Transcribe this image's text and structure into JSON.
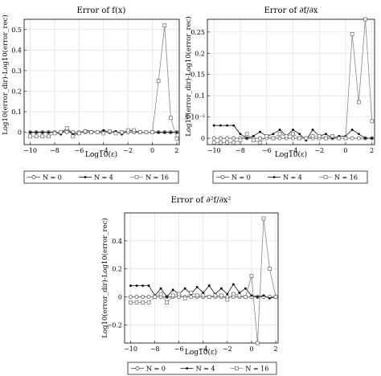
{
  "chart_data": [
    {
      "type": "line",
      "title": "Error of f(x)",
      "xlabel": "Log10(ε)",
      "ylabel": "Log10(error_dir)-Log10(error_rec)",
      "xlim": [
        -10.5,
        2.2
      ],
      "ylim": [
        -0.06,
        0.55
      ],
      "xticks": [
        "−10",
        "−8",
        "−6",
        "−4",
        "−2",
        "0",
        "2"
      ],
      "yticks": [
        "0",
        "0.1",
        "0.2",
        "0.3",
        "0.4",
        "0.5"
      ],
      "grid": true,
      "legend_placement": "bottom",
      "x": [
        -10,
        -9.5,
        -9,
        -8.5,
        -8,
        -7.5,
        -7,
        -6.5,
        -6,
        -5.5,
        -5,
        -4.5,
        -4,
        -3.5,
        -3,
        -2.5,
        -2,
        -1.5,
        -1,
        -0.5,
        0,
        0.5,
        1,
        1.5,
        2
      ],
      "series": [
        {
          "name": "N = 0",
          "marker": "circle",
          "values": [
            0,
            0,
            0,
            0,
            0,
            0,
            0,
            0,
            0,
            0,
            0,
            0,
            0,
            0,
            0,
            0,
            0,
            0,
            0,
            0,
            0,
            0,
            0,
            0,
            0
          ]
        },
        {
          "name": "N = 4",
          "marker": "dot",
          "values": [
            0,
            0,
            0,
            0,
            0,
            -0.01,
            0.02,
            -0.01,
            -0.005,
            0.01,
            0.005,
            0,
            0.01,
            0,
            0.005,
            -0.01,
            0.01,
            0.005,
            0,
            0,
            0,
            0,
            0,
            0,
            0
          ]
        },
        {
          "name": "N = 16",
          "marker": "square",
          "values": [
            -0.02,
            -0.02,
            -0.02,
            -0.02,
            -0.005,
            0,
            0.02,
            -0.02,
            -0.005,
            0.005,
            0,
            0,
            -0.005,
            0.005,
            -0.005,
            0,
            0.01,
            0.01,
            0,
            0,
            0,
            0.25,
            0.52,
            0.07,
            -0.03
          ]
        }
      ]
    },
    {
      "type": "line",
      "title": "Error of ∂f/∂x",
      "xlabel": "Log10(ε)",
      "ylabel": "Log10(error_dir)-Log10(error_rec)",
      "xlim": [
        -10.5,
        2.2
      ],
      "ylim": [
        -0.015,
        0.28
      ],
      "xticks": [
        "−10",
        "−8",
        "−6",
        "−4",
        "−2",
        "0",
        "2"
      ],
      "yticks": [
        "0",
        "5·10⁻²",
        "0.1",
        "0.15",
        "0.2",
        "0.25"
      ],
      "grid": true,
      "legend_placement": "bottom",
      "x": [
        -10,
        -9.5,
        -9,
        -8.5,
        -8,
        -7.5,
        -7,
        -6.5,
        -6,
        -5.5,
        -5,
        -4.5,
        -4,
        -3.5,
        -3,
        -2.5,
        -2,
        -1.5,
        -1,
        -0.5,
        0,
        0.5,
        1,
        1.5,
        2
      ],
      "series": [
        {
          "name": "N = 0",
          "marker": "circle",
          "values": [
            0,
            0,
            0,
            0,
            0,
            0,
            0,
            0,
            0,
            0,
            0,
            0,
            0,
            0,
            0,
            0,
            0,
            0,
            0,
            0,
            0,
            0,
            0,
            0,
            0
          ]
        },
        {
          "name": "N = 4",
          "marker": "dot",
          "values": [
            0.03,
            0.03,
            0.03,
            0.03,
            0.01,
            0,
            0.005,
            0.015,
            0.005,
            0.01,
            0.02,
            0.005,
            0.02,
            0.01,
            -0.005,
            0.02,
            0.005,
            0.01,
            0,
            0.005,
            0.005,
            0.02,
            0.01,
            0,
            0
          ]
        },
        {
          "name": "N = 16",
          "marker": "square",
          "values": [
            -0.01,
            -0.01,
            -0.01,
            -0.01,
            -0.005,
            0.01,
            -0.005,
            -0.01,
            0.005,
            0,
            0.01,
            0.005,
            0.01,
            0,
            0,
            0.005,
            0.005,
            0,
            0.005,
            0,
            0,
            0.245,
            0.085,
            0.28,
            0.04
          ]
        }
      ]
    },
    {
      "type": "line",
      "title": "Error of ∂²f/∂x²",
      "xlabel": "Log10(ε)",
      "ylabel": "Log10(error_dir)-Log10(error_rec)",
      "xlim": [
        -10.5,
        2.2
      ],
      "ylim": [
        -0.33,
        0.6
      ],
      "xticks": [
        "−10",
        "−8",
        "−6",
        "−4",
        "−2",
        "0",
        "2"
      ],
      "yticks": [
        "−0.2",
        "0",
        "0.2",
        "0.4"
      ],
      "grid": true,
      "legend_placement": "bottom",
      "x": [
        -10,
        -9.5,
        -9,
        -8.5,
        -8,
        -7.5,
        -7,
        -6.5,
        -6,
        -5.5,
        -5,
        -4.5,
        -4,
        -3.5,
        -3,
        -2.5,
        -2,
        -1.5,
        -1,
        -0.5,
        0,
        0.5,
        1,
        1.5,
        2
      ],
      "series": [
        {
          "name": "N = 0",
          "marker": "circle",
          "values": [
            0,
            0,
            0,
            0,
            0,
            0,
            0,
            0,
            0,
            0,
            0,
            0,
            0,
            0,
            0,
            0,
            0,
            0,
            0,
            0,
            0,
            0,
            0,
            0,
            0
          ]
        },
        {
          "name": "N = 4",
          "marker": "dot",
          "values": [
            0.08,
            0.08,
            0.08,
            0.08,
            0.01,
            0.06,
            0,
            0.05,
            0.02,
            0.06,
            0.02,
            0.07,
            0.03,
            0.08,
            0.02,
            0.06,
            0.02,
            0.09,
            0.03,
            0.06,
            0.01,
            0,
            0.01,
            -0.01,
            0
          ]
        },
        {
          "name": "N = 16",
          "marker": "square",
          "values": [
            -0.04,
            -0.04,
            -0.04,
            -0.04,
            0,
            0.02,
            -0.04,
            0.01,
            0.02,
            -0.01,
            0.03,
            0.01,
            0.01,
            0,
            0.01,
            0.01,
            -0.02,
            0.02,
            0.01,
            0,
            0.15,
            -0.33,
            0.56,
            0.2,
            0
          ]
        }
      ]
    }
  ]
}
